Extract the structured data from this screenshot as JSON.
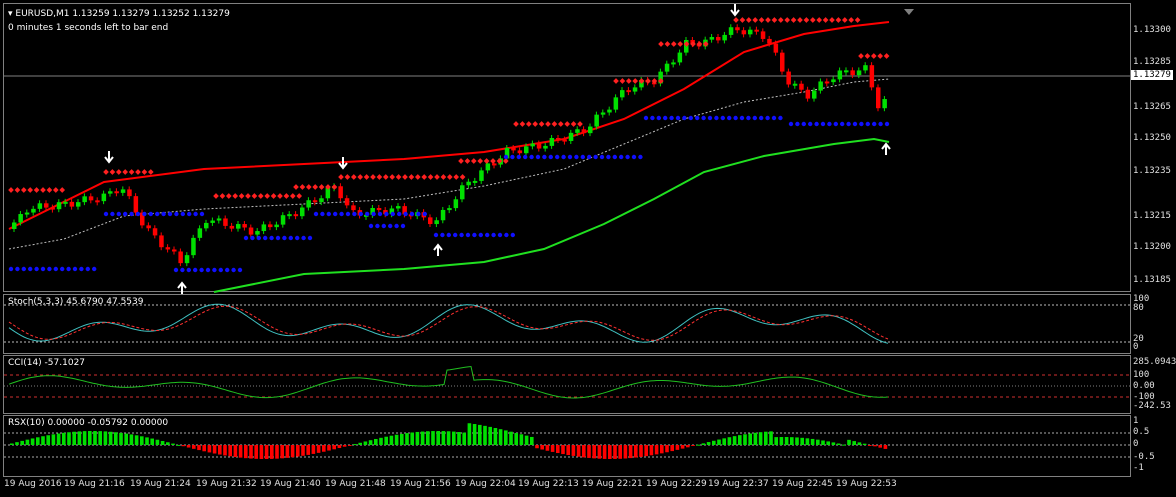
{
  "header": {
    "symbol_line": "▾ EURUSD,M1  1.13259 1.13279 1.13252 1.13279",
    "countdown": "0 minutes 1 seconds left to bar end"
  },
  "price_scale": {
    "ticks": [
      "1.13300",
      "1.13285",
      "1.13265",
      "1.13250",
      "1.13235",
      "1.13215",
      "1.13200",
      "1.13185"
    ],
    "current_price": "1.13279"
  },
  "stoch": {
    "label": "Stoch(5,3,3) 45.6790 47.5539",
    "ticks": [
      "100",
      "80",
      "20",
      "0"
    ]
  },
  "cci": {
    "label": "CCI(14) -57.1027",
    "ticks": [
      "285.0943",
      "100",
      "0.00",
      "-100",
      "-242.53"
    ]
  },
  "rsx": {
    "label": "RSX(10) 0.00000 -0.05792 0.00000",
    "ticks": [
      "1",
      "0.5",
      "0",
      "-0.5",
      "-1"
    ]
  },
  "time_axis": [
    "19 Aug 2016",
    "19 Aug 21:16",
    "19 Aug 21:24",
    "19 Aug 21:32",
    "19 Aug 21:40",
    "19 Aug 21:48",
    "19 Aug 21:56",
    "19 Aug 22:04",
    "19 Aug 22:13",
    "19 Aug 22:21",
    "19 Aug 22:29",
    "19 Aug 22:37",
    "19 Aug 22:45",
    "19 Aug 22:53"
  ],
  "colors": {
    "bull": "#00e000",
    "bear": "#ff0000",
    "upper_band": "#ff0000",
    "lower_band": "#20e020",
    "mid_line": "#c0c0c0",
    "support_dots": "#1010ff",
    "resist_dots": "#ff2020",
    "stoch_main": "#40c0c0",
    "stoch_signal": "#ff3030",
    "cci_line": "#20c020"
  }
}
